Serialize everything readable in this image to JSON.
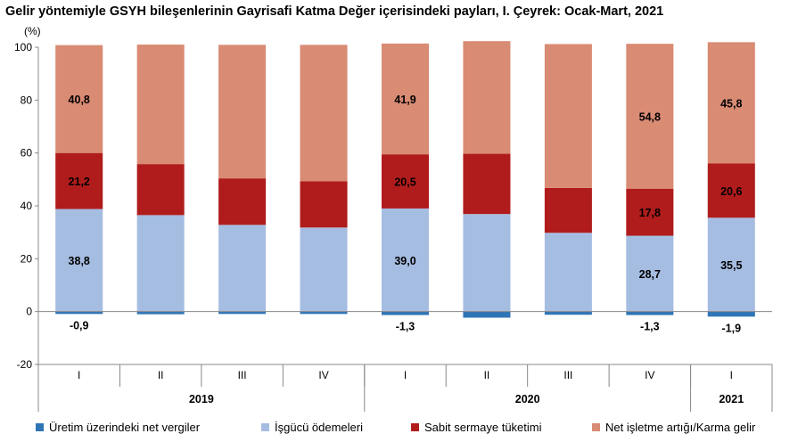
{
  "title": "Gelir yöntemiyle GSYH bileşenlerinin Gayrisafi Katma Değer içerisindeki payları, I. Çeyrek: Ocak-Mart, 2021",
  "unit": "(%)",
  "chart_data": {
    "type": "bar",
    "stacked": true,
    "title": "Gelir yöntemiyle GSYH bileşenlerinin Gayrisafi Katma Değer içerisindeki payları, I. Çeyrek: Ocak-Mart, 2021",
    "ylabel": "(%)",
    "ylim": [
      -20,
      100
    ],
    "yticks": [
      -20,
      0,
      20,
      40,
      60,
      80,
      100
    ],
    "grid": false,
    "legend_position": "bottom",
    "categories": [
      "I",
      "II",
      "III",
      "IV",
      "I",
      "II",
      "III",
      "IV",
      "I"
    ],
    "groups": [
      {
        "label": "2019",
        "count": 4
      },
      {
        "label": "2020",
        "count": 4
      },
      {
        "label": "2021",
        "count": 1
      }
    ],
    "series": [
      {
        "name": "Üretim üzerindeki net vergiler",
        "color": "#2e75b6",
        "values": [
          -0.9,
          -1.0,
          -0.9,
          -0.9,
          -1.3,
          -2.3,
          -1.2,
          -1.3,
          -1.9
        ],
        "labels": [
          "-0,9",
          "",
          "",
          "",
          "-1,3",
          "",
          "",
          "-1,3",
          "-1,9"
        ]
      },
      {
        "name": "İşgücü ödemeleri",
        "color": "#a6bde2",
        "values": [
          38.8,
          36.5,
          32.8,
          31.8,
          39.0,
          36.9,
          29.8,
          28.7,
          35.5
        ],
        "labels": [
          "38,8",
          "",
          "",
          "",
          "39,0",
          "",
          "",
          "28,7",
          "35,5"
        ]
      },
      {
        "name": "Sabit sermaye tüketimi",
        "color": "#b01c1c",
        "values": [
          21.2,
          19.3,
          17.6,
          17.5,
          20.5,
          22.8,
          17.0,
          17.8,
          20.6
        ],
        "labels": [
          "21,2",
          "",
          "",
          "",
          "20,5",
          "",
          "",
          "17,8",
          "20,6"
        ]
      },
      {
        "name": "Net işletme artığı/Karma gelir",
        "color": "#d98b74",
        "values": [
          40.8,
          45.2,
          50.5,
          51.6,
          41.9,
          42.6,
          54.4,
          54.8,
          45.8
        ],
        "labels": [
          "40,8",
          "",
          "",
          "",
          "41,9",
          "",
          "",
          "54,8",
          "45,8"
        ]
      }
    ]
  }
}
